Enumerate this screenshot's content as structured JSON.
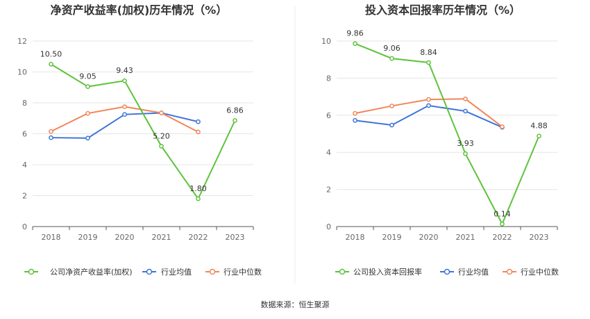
{
  "source": "数据来源：恒生聚源",
  "chart_data": [
    {
      "type": "line",
      "title": "净资产收益率(加权)历年情况（%）",
      "categories": [
        "2018",
        "2019",
        "2020",
        "2021",
        "2022",
        "2023"
      ],
      "ylim": [
        0,
        12
      ],
      "yticks": [
        0,
        2,
        4,
        6,
        8,
        10,
        12
      ],
      "grid": true,
      "legend_position": "bottom",
      "series": [
        {
          "name": "公司净资产收益率(加权)",
          "color": "#5cc33b",
          "values": [
            10.5,
            9.05,
            9.43,
            5.2,
            1.8,
            6.86
          ],
          "labels": [
            "10.50",
            "9.05",
            "9.43",
            "5.20",
            "1.80",
            "6.86"
          ]
        },
        {
          "name": "行业均值",
          "color": "#3d74d9",
          "values": [
            5.75,
            5.72,
            7.25,
            7.35,
            6.78,
            null
          ]
        },
        {
          "name": "行业中位数",
          "color": "#f0865a",
          "values": [
            6.15,
            7.32,
            7.75,
            7.35,
            6.12,
            null
          ]
        }
      ]
    },
    {
      "type": "line",
      "title": "投入资本回报率历年情况（%）",
      "categories": [
        "2018",
        "2019",
        "2020",
        "2021",
        "2022",
        "2023"
      ],
      "ylim": [
        0,
        10
      ],
      "yticks": [
        0,
        2,
        4,
        6,
        8,
        10
      ],
      "grid": true,
      "legend_position": "bottom",
      "series": [
        {
          "name": "公司投入资本回报率",
          "color": "#5cc33b",
          "values": [
            9.86,
            9.06,
            8.84,
            3.93,
            0.14,
            4.88
          ],
          "labels": [
            "9.86",
            "9.06",
            "8.84",
            "3.93",
            "0.14",
            "4.88"
          ]
        },
        {
          "name": "行业均值",
          "color": "#3d74d9",
          "values": [
            5.72,
            5.47,
            6.52,
            6.22,
            5.35,
            null
          ]
        },
        {
          "name": "行业中位数",
          "color": "#f0865a",
          "values": [
            6.1,
            6.5,
            6.85,
            6.88,
            5.38,
            null
          ]
        }
      ]
    }
  ]
}
